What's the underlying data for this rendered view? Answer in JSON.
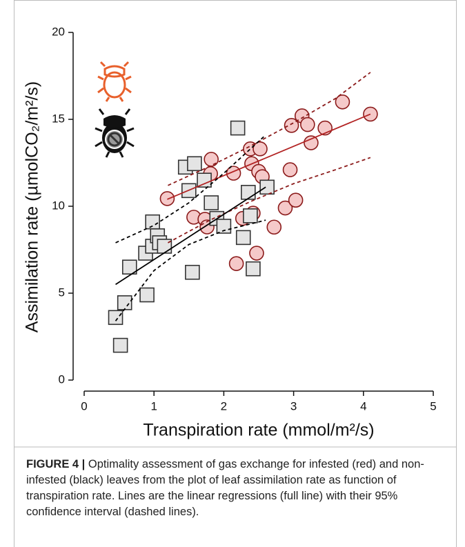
{
  "chart_data": {
    "type": "scatter",
    "xlabel": "Transpiration rate (mmol/m²/s)",
    "ylabel": "Assimilation rate (µmolCO₂/m²/s)",
    "xlim": [
      0,
      5
    ],
    "xticks": [
      0,
      1,
      2,
      3,
      4,
      5
    ],
    "ylim": [
      0,
      20
    ],
    "yticks": [
      0,
      5,
      10,
      15,
      20
    ],
    "series": [
      {
        "marker": "circle",
        "color": "#8b1a1a",
        "fill": "#f5c9c9",
        "x": [
          1.19,
          1.57,
          1.73,
          1.76,
          1.82,
          1.81,
          2.14,
          2.18,
          2.27,
          2.38,
          2.4,
          2.42,
          2.47,
          2.5,
          2.52,
          2.55,
          2.72,
          2.88,
          2.95,
          2.97,
          3.03,
          3.12,
          3.2,
          3.25,
          3.45,
          3.7,
          4.1
        ],
        "values": [
          10.44,
          9.37,
          9.25,
          8.81,
          12.7,
          11.87,
          11.9,
          6.7,
          9.3,
          13.3,
          12.45,
          9.6,
          7.3,
          12.0,
          13.3,
          11.7,
          8.8,
          9.9,
          12.1,
          14.65,
          10.35,
          15.2,
          14.7,
          13.65,
          14.5,
          16.0,
          15.3
        ]
      },
      {
        "marker": "square",
        "color": "#333333",
        "fill": "#e4e4e4",
        "x": [
          0.45,
          0.52,
          0.58,
          0.65,
          0.88,
          0.9,
          0.98,
          0.98,
          1.05,
          1.08,
          1.15,
          1.45,
          1.5,
          1.58,
          1.55,
          1.72,
          1.82,
          1.9,
          2.0,
          2.2,
          2.28,
          2.35,
          2.38,
          2.42,
          2.62
        ],
        "values": [
          3.6,
          2.0,
          4.45,
          6.5,
          7.3,
          4.9,
          9.1,
          7.7,
          8.3,
          7.9,
          7.7,
          12.25,
          10.9,
          12.45,
          6.2,
          11.5,
          10.2,
          9.3,
          8.85,
          14.5,
          8.2,
          10.8,
          9.45,
          6.4,
          11.1
        ]
      },
      {
        "marker": "line",
        "style": "solid",
        "color": "#b22222",
        "x": [
          1.19,
          4.1
        ],
        "values": [
          10.4,
          15.3
        ]
      },
      {
        "marker": "line",
        "style": "dashed",
        "color": "#8b1a1a",
        "x": [
          1.2,
          1.8,
          2.4,
          3.0,
          3.6,
          4.1
        ],
        "values": [
          11.2,
          12.3,
          13.5,
          14.8,
          16.2,
          17.7
        ]
      },
      {
        "marker": "line",
        "style": "dashed",
        "color": "#8b1a1a",
        "x": [
          1.2,
          1.8,
          2.4,
          3.0,
          3.6,
          4.1
        ],
        "values": [
          7.9,
          9.2,
          10.3,
          11.3,
          12.1,
          12.8
        ]
      },
      {
        "marker": "line",
        "style": "solid",
        "color": "#000000",
        "x": [
          0.45,
          2.6
        ],
        "values": [
          5.5,
          11.1
        ]
      },
      {
        "marker": "line",
        "style": "dashed",
        "color": "#000000",
        "x": [
          0.45,
          1.0,
          1.5,
          2.0,
          2.6
        ],
        "values": [
          7.9,
          8.9,
          10.2,
          11.9,
          14.1
        ]
      },
      {
        "marker": "line",
        "style": "dashed",
        "color": "#000000",
        "x": [
          0.45,
          1.0,
          1.5,
          2.0,
          2.6
        ],
        "values": [
          3.4,
          6.3,
          7.8,
          8.6,
          9.2
        ]
      }
    ]
  },
  "caption": {
    "label": "FIGURE 4 |",
    "text": " Optimality assessment of gas exchange for infested (red) and non-infested (black) leaves from the plot of leaf assimilation rate as function of transpiration rate. Lines are the linear regressions (full line) with their 95% confidence interval (dashed lines)."
  }
}
